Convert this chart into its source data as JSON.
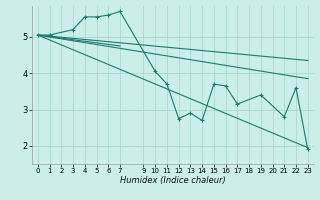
{
  "xlabel": "Humidex (Indice chaleur)",
  "bg_color": "#cceee8",
  "grid_color": "#aad8d0",
  "line_color": "#1a7a6e",
  "xlim": [
    -0.5,
    23.5
  ],
  "ylim": [
    1.5,
    5.85
  ],
  "yticks": [
    2,
    3,
    4,
    5
  ],
  "xticks": [
    0,
    1,
    2,
    3,
    4,
    5,
    6,
    7,
    9,
    10,
    11,
    12,
    13,
    14,
    15,
    16,
    17,
    18,
    19,
    20,
    21,
    22,
    23
  ],
  "series_main": {
    "x": [
      0,
      1,
      3,
      4,
      5,
      6,
      7,
      10,
      11,
      12,
      13,
      14,
      15,
      16,
      17,
      19,
      21,
      22,
      23
    ],
    "y": [
      5.05,
      5.05,
      5.2,
      5.55,
      5.55,
      5.6,
      5.7,
      4.05,
      3.7,
      2.75,
      2.9,
      2.7,
      3.7,
      3.65,
      3.15,
      3.4,
      2.8,
      3.6,
      1.9
    ]
  },
  "series_lines": [
    {
      "x": [
        0,
        7
      ],
      "y": [
        5.05,
        4.75
      ]
    },
    {
      "x": [
        0,
        23
      ],
      "y": [
        5.05,
        4.35
      ]
    },
    {
      "x": [
        0,
        23
      ],
      "y": [
        5.05,
        3.85
      ]
    },
    {
      "x": [
        0,
        23
      ],
      "y": [
        5.05,
        1.95
      ]
    }
  ]
}
